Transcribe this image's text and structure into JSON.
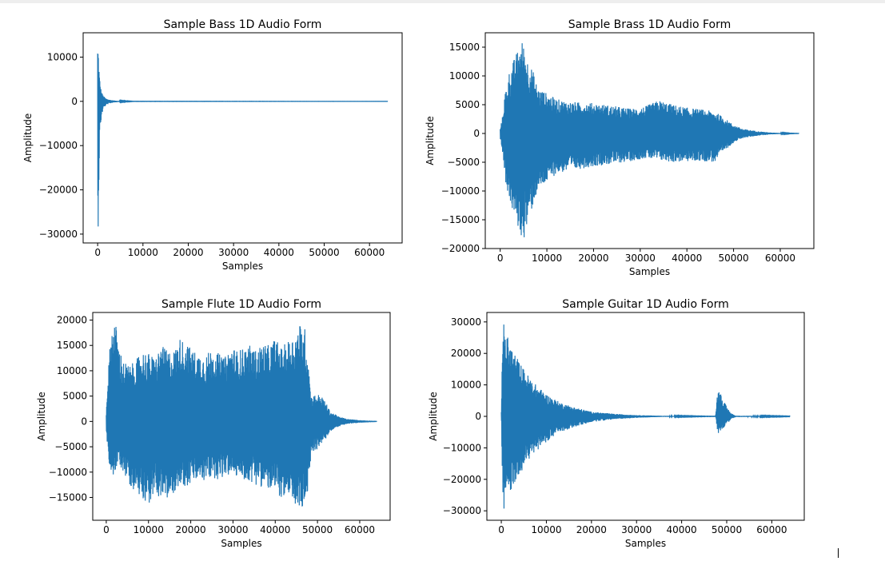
{
  "colors": {
    "series": "#1f77b4",
    "axis": "#000000",
    "background": "#ffffff"
  },
  "chart_data": [
    {
      "type": "line",
      "title": "Sample Bass 1D Audio Form",
      "xlabel": "Samples",
      "ylabel": "Amplitude",
      "xlim": [
        -3200,
        67200
      ],
      "ylim": [
        -32000,
        15500
      ],
      "xticks": [
        0,
        10000,
        20000,
        30000,
        40000,
        50000,
        60000
      ],
      "xtick_labels": [
        "0",
        "10000",
        "20000",
        "30000",
        "40000",
        "50000",
        "60000"
      ],
      "yticks": [
        10000,
        0,
        -10000,
        -20000,
        -30000
      ],
      "ytick_labels": [
        "10000",
        "0",
        "−10000",
        "−20000",
        "−30000"
      ],
      "grid": false,
      "legend": "none",
      "envelope": {
        "x": [
          0,
          50,
          120,
          250,
          400,
          600,
          900,
          1300,
          1800,
          2500,
          3500,
          5000,
          8000,
          64000
        ],
        "upper": [
          12800,
          13000,
          12500,
          9000,
          6000,
          3500,
          2000,
          1200,
          700,
          400,
          200,
          80,
          20,
          10
        ],
        "lower": [
          -31000,
          -30000,
          -26000,
          -18000,
          -9000,
          -5500,
          -3000,
          -1500,
          -900,
          -500,
          -250,
          -100,
          -20,
          -10
        ]
      }
    },
    {
      "type": "line",
      "title": "Sample Brass 1D Audio Form",
      "xlabel": "Samples",
      "ylabel": "Amplitude",
      "xlim": [
        -3200,
        67200
      ],
      "ylim": [
        -20000,
        17500
      ],
      "xticks": [
        0,
        10000,
        20000,
        30000,
        40000,
        50000,
        60000
      ],
      "xtick_labels": [
        "0",
        "10000",
        "20000",
        "30000",
        "40000",
        "50000",
        "60000"
      ],
      "yticks": [
        15000,
        10000,
        5000,
        0,
        -5000,
        -10000,
        -15000,
        -20000
      ],
      "ytick_labels": [
        "15000",
        "10000",
        "5000",
        "0",
        "−5000",
        "−10000",
        "−15000",
        "−20000"
      ],
      "grid": false,
      "legend": "none",
      "envelope": {
        "x": [
          0,
          500,
          1000,
          2000,
          3000,
          4000,
          4800,
          6000,
          7000,
          8000,
          10000,
          12000,
          15000,
          20000,
          25000,
          28000,
          31000,
          34000,
          37000,
          40000,
          43000,
          46000,
          48000,
          50000,
          52000,
          55000,
          58000,
          62000,
          64000
        ],
        "upper": [
          800,
          3000,
          7000,
          11000,
          13000,
          15000,
          16200,
          12500,
          11000,
          8000,
          7000,
          6000,
          5500,
          5300,
          4700,
          4300,
          4700,
          5800,
          5000,
          4500,
          4200,
          3800,
          2700,
          1500,
          800,
          400,
          150,
          30,
          10
        ],
        "lower": [
          -1000,
          -3500,
          -8000,
          -12000,
          -14500,
          -17000,
          -19000,
          -15500,
          -12500,
          -10000,
          -8500,
          -7000,
          -6500,
          -5700,
          -5200,
          -4800,
          -4300,
          -4700,
          -5000,
          -4900,
          -4800,
          -5000,
          -3000,
          -1600,
          -800,
          -400,
          -150,
          -30,
          -10
        ]
      }
    },
    {
      "type": "line",
      "title": "Sample Flute 1D Audio Form",
      "xlabel": "Samples",
      "ylabel": "Amplitude",
      "xlim": [
        -3200,
        67200
      ],
      "ylim": [
        -19500,
        21500
      ],
      "xticks": [
        0,
        10000,
        20000,
        30000,
        40000,
        50000,
        60000
      ],
      "xtick_labels": [
        "0",
        "10000",
        "20000",
        "30000",
        "40000",
        "50000",
        "60000"
      ],
      "yticks": [
        20000,
        15000,
        10000,
        5000,
        0,
        -5000,
        -10000,
        -15000
      ],
      "ytick_labels": [
        "20000",
        "15000",
        "10000",
        "5000",
        "0",
        "−5000",
        "−10000",
        "−15000"
      ],
      "grid": false,
      "legend": "none",
      "envelope": {
        "x": [
          0,
          300,
          800,
          1200,
          1800,
          2300,
          3000,
          4000,
          5500,
          7000,
          8500,
          10000,
          11500,
          13000,
          14500,
          16000,
          17500,
          19000,
          20500,
          22000,
          23500,
          25000,
          26500,
          28000,
          29500,
          31000,
          32500,
          34000,
          35500,
          37000,
          38500,
          40000,
          41500,
          43000,
          44500,
          46000,
          47000,
          47700,
          48500,
          50000,
          51500,
          53000,
          55000,
          57000,
          60000,
          64000
        ],
        "upper": [
          2000,
          8000,
          14000,
          18000,
          20500,
          19000,
          15000,
          12000,
          11000,
          12000,
          14000,
          13500,
          12500,
          15000,
          14000,
          14000,
          16500,
          15500,
          14000,
          13500,
          13000,
          14500,
          13500,
          12500,
          15000,
          14000,
          14500,
          15000,
          14000,
          15500,
          15000,
          16500,
          14500,
          16000,
          17000,
          19500,
          18500,
          14000,
          5000,
          5500,
          4500,
          2000,
          1000,
          500,
          250,
          100
        ],
        "lower": [
          -2000,
          -6000,
          -9000,
          -10500,
          -11000,
          -9500,
          -8500,
          -10000,
          -12500,
          -14000,
          -15000,
          -16500,
          -14500,
          -15000,
          -16000,
          -14000,
          -12500,
          -13000,
          -12000,
          -11500,
          -12000,
          -11000,
          -11500,
          -11000,
          -10500,
          -11000,
          -11500,
          -12000,
          -12500,
          -13000,
          -13500,
          -14500,
          -15000,
          -16000,
          -16500,
          -17500,
          -18000,
          -14000,
          -6000,
          -5500,
          -4000,
          -2000,
          -1000,
          -500,
          -250,
          -100
        ]
      }
    },
    {
      "type": "line",
      "title": "Sample Guitar 1D Audio Form",
      "xlabel": "Samples",
      "ylabel": "Amplitude",
      "xlim": [
        -3200,
        67200
      ],
      "ylim": [
        -33000,
        33000
      ],
      "xticks": [
        0,
        10000,
        20000,
        30000,
        40000,
        50000,
        60000
      ],
      "xtick_labels": [
        "0",
        "10000",
        "20000",
        "30000",
        "40000",
        "50000",
        "60000"
      ],
      "yticks": [
        30000,
        20000,
        10000,
        0,
        -10000,
        -20000,
        -30000
      ],
      "ytick_labels": [
        "30000",
        "20000",
        "10000",
        "0",
        "−10000",
        "−20000",
        "−30000"
      ],
      "grid": false,
      "legend": "none",
      "envelope": {
        "x": [
          0,
          300,
          1000,
          2000,
          3000,
          5000,
          7000,
          10000,
          13000,
          16000,
          20000,
          25000,
          30000,
          35000,
          40000,
          45000,
          47500,
          48000,
          48500,
          49000,
          50000,
          51000,
          52000,
          64000
        ],
        "upper": [
          2000,
          31000,
          27000,
          23000,
          20000,
          15000,
          11000,
          7000,
          4500,
          3000,
          1500,
          800,
          400,
          200,
          100,
          50,
          30,
          8500,
          8000,
          6000,
          3000,
          1000,
          200,
          50
        ],
        "lower": [
          -2000,
          -31000,
          -28000,
          -24000,
          -21000,
          -16000,
          -12000,
          -8000,
          -5000,
          -3500,
          -1800,
          -900,
          -450,
          -200,
          -100,
          -50,
          -30,
          -5500,
          -5000,
          -4000,
          -2500,
          -800,
          -200,
          -50
        ]
      }
    }
  ]
}
